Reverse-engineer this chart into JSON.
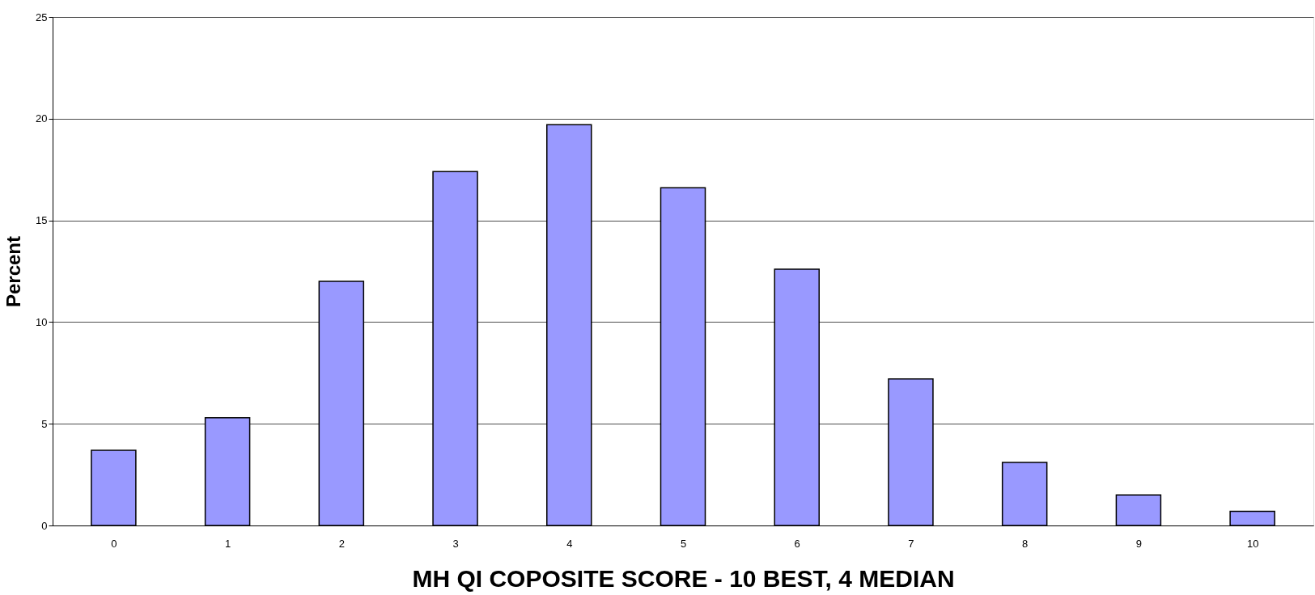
{
  "chart_data": {
    "type": "bar",
    "xlabel": "MH QI COPOSITE SCORE - 10 BEST, 4 MEDIAN",
    "ylabel": "Percent",
    "categories": [
      "0",
      "1",
      "2",
      "3",
      "4",
      "5",
      "6",
      "7",
      "8",
      "9",
      "10"
    ],
    "values": [
      3.7,
      5.3,
      12.0,
      17.4,
      19.7,
      16.6,
      12.6,
      7.2,
      3.1,
      1.5,
      0.7
    ],
    "color": "#9999ff",
    "ylim": [
      0,
      25
    ],
    "yticks": [
      0,
      5,
      10,
      15,
      20,
      25
    ],
    "grid": "y"
  }
}
